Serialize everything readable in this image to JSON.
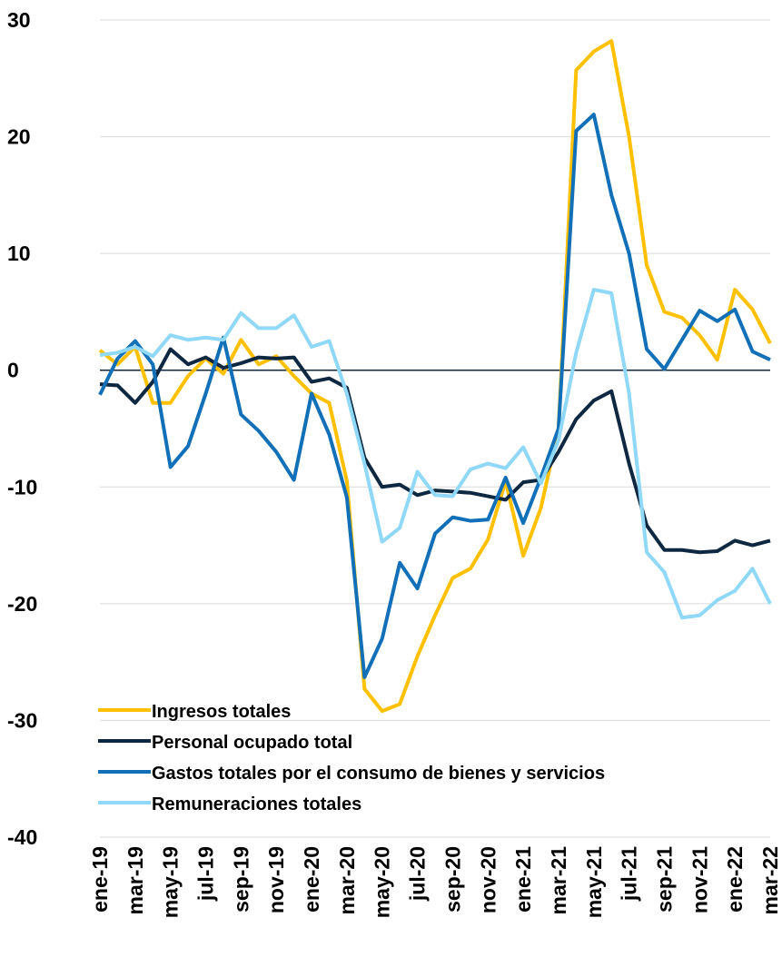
{
  "chart_data": {
    "type": "line",
    "categories": [
      "ene-19",
      null,
      "mar-19",
      null,
      "may-19",
      null,
      "jul-19",
      null,
      "sep-19",
      null,
      "nov-19",
      null,
      "ene-20",
      null,
      "mar-20",
      null,
      "may-20",
      null,
      "jul-20",
      null,
      "sep-20",
      null,
      "nov-20",
      null,
      "ene-21",
      null,
      "mar-21",
      null,
      "may-21",
      null,
      "jul-21",
      null,
      "sep-21",
      null,
      "nov-21",
      null,
      "ene-22",
      null,
      "mar-22"
    ],
    "series": [
      {
        "name": "Ingresos totales",
        "color": "#ffc000",
        "values": [
          1.7,
          0.5,
          2.0,
          -2.8,
          -2.8,
          -0.5,
          1.0,
          -0.3,
          2.6,
          0.5,
          1.2,
          -0.5,
          -2.0,
          -2.8,
          -9.5,
          -27.3,
          -29.2,
          -28.6,
          -24.5,
          -21.0,
          -17.8,
          -17.0,
          -14.5,
          -9.5,
          -15.9,
          -11.8,
          -5.0,
          25.7,
          27.3,
          28.2,
          20.0,
          9.0,
          5.0,
          4.5,
          3.0,
          0.9,
          6.9,
          5.2,
          2.3
        ]
      },
      {
        "name": "Personal ocupado total",
        "color": "#0e2841",
        "values": [
          -1.2,
          -1.3,
          -2.8,
          -1.0,
          1.8,
          0.5,
          1.1,
          0.2,
          0.6,
          1.1,
          1.0,
          1.1,
          -1.0,
          -0.7,
          -1.5,
          -7.5,
          -10.0,
          -9.8,
          -10.7,
          -10.3,
          -10.4,
          -10.5,
          -10.8,
          -11.1,
          -9.6,
          -9.4,
          -7.0,
          -4.2,
          -2.6,
          -1.8,
          -8.0,
          -13.3,
          -15.4,
          -15.4,
          -15.6,
          -15.5,
          -14.6,
          -15.0,
          -14.6
        ]
      },
      {
        "name": "Gastos totales por el consumo de bienes y servicios",
        "color": "#1170b8",
        "values": [
          -2.1,
          1.0,
          2.5,
          0.5,
          -8.3,
          -6.5,
          -2.0,
          2.8,
          -3.8,
          -5.2,
          -7.0,
          -9.4,
          -2.0,
          -5.5,
          -10.9,
          -26.3,
          -23.0,
          -16.5,
          -18.7,
          -14.0,
          -12.6,
          -12.9,
          -12.8,
          -9.2,
          -13.1,
          -9.2,
          -5.0,
          20.5,
          21.9,
          15.0,
          10.0,
          1.8,
          0.1,
          2.6,
          5.1,
          4.2,
          5.2,
          1.6,
          0.9
        ]
      },
      {
        "name": "Remuneraciones totales",
        "color": "#8fd8f8",
        "values": [
          1.3,
          1.5,
          2.0,
          1.2,
          3.0,
          2.6,
          2.8,
          2.6,
          4.9,
          3.6,
          3.6,
          4.7,
          2.0,
          2.5,
          -2.0,
          -8.0,
          -14.7,
          -13.5,
          -8.7,
          -10.7,
          -10.8,
          -8.5,
          -8.0,
          -8.4,
          -6.6,
          -9.7,
          -6.0,
          1.5,
          6.9,
          6.6,
          -2.0,
          -15.6,
          -17.3,
          -21.2,
          -21.0,
          -19.7,
          -18.9,
          -17.0,
          -20.0
        ]
      }
    ],
    "ylim": [
      -40,
      30
    ],
    "yticks": [
      -40,
      -30,
      -20,
      -10,
      0,
      10,
      20,
      30
    ],
    "grid": true,
    "legend": "lower left"
  }
}
